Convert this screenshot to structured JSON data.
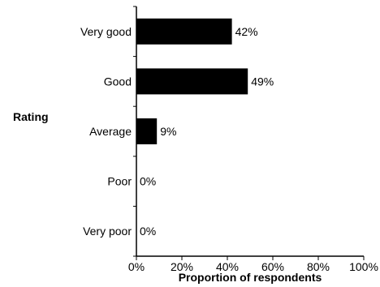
{
  "chart_data": {
    "type": "bar",
    "orientation": "horizontal",
    "categories": [
      "Very good",
      "Good",
      "Average",
      "Poor",
      "Very poor"
    ],
    "values": [
      42,
      49,
      9,
      0,
      0
    ],
    "data_labels": [
      "42%",
      "49%",
      "9%",
      "0%",
      "0%"
    ],
    "xlim": [
      0,
      100
    ],
    "x_ticks": [
      "0%",
      "20%",
      "40%",
      "60%",
      "80%",
      "100%"
    ],
    "xlabel": "Proportion of respondents",
    "ylabel": "Rating",
    "bar_color": "#000000",
    "grid": false,
    "legend": "none"
  }
}
